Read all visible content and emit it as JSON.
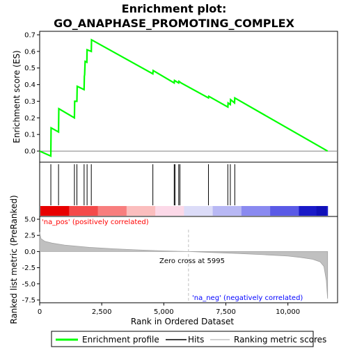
{
  "chart_data": {
    "type": "line",
    "title_line1": "Enrichment plot:",
    "title_line2": "GO_ANAPHASE_PROMOTING_COMPLEX",
    "top_panel": {
      "ylabel": "Enrichment score (ES)",
      "ylim": [
        -0.05,
        0.7
      ],
      "yticks": [
        "0.0",
        "0.1",
        "0.2",
        "0.3",
        "0.4",
        "0.5",
        "0.6",
        "0.7"
      ],
      "ytick_values": [
        0.0,
        0.1,
        0.2,
        0.3,
        0.4,
        0.5,
        0.6,
        0.7
      ],
      "grid": false,
      "series": [
        {
          "name": "Enrichment profile",
          "color": "#00ff00",
          "x": [
            0,
            450,
            460,
            760,
            770,
            1400,
            1410,
            1500,
            1510,
            1790,
            1800,
            1810,
            1830,
            1900,
            1910,
            2080,
            2090,
            4560,
            4570,
            5420,
            5430,
            5600,
            5610,
            5700,
            6800,
            6810,
            7580,
            7590,
            7680,
            7690,
            7850,
            7860,
            11600
          ],
          "y": [
            0.0,
            -0.03,
            0.14,
            0.115,
            0.255,
            0.2,
            0.3,
            0.3,
            0.39,
            0.37,
            0.45,
            0.46,
            0.54,
            0.535,
            0.61,
            0.6,
            0.67,
            0.465,
            0.485,
            0.41,
            0.425,
            0.41,
            0.42,
            0.41,
            0.32,
            0.33,
            0.265,
            0.29,
            0.28,
            0.31,
            0.29,
            0.32,
            0.0
          ]
        }
      ]
    },
    "hits_panel": {
      "hit_positions": [
        450,
        760,
        1400,
        1500,
        1790,
        1910,
        2080,
        4560,
        5420,
        5450,
        5600,
        5650,
        6800,
        7580,
        7680,
        7860
      ]
    },
    "bottom_panel": {
      "ylabel": "Ranked list metric (PreRanked)",
      "xlabel": "Rank in Ordered Dataset",
      "ylim": [
        -7.5,
        5.0
      ],
      "yticks": [
        "5.0",
        "2.5",
        "0.0",
        "-2.5",
        "-5.0",
        "-7.5"
      ],
      "ytick_values": [
        5.0,
        2.5,
        0.0,
        -2.5,
        -5.0,
        -7.5
      ],
      "xlim": [
        0,
        12000
      ],
      "xticks": [
        "0",
        "2,500",
        "5,000",
        "7,500",
        "10,000"
      ],
      "xtick_values": [
        0,
        2500,
        5000,
        7500,
        10000
      ],
      "zero_cross_label": "Zero cross at 5995",
      "zero_cross_rank": 5995,
      "na_pos_label": "'na_pos' (positively correlated)",
      "na_neg_label": "'na_neg' (negatively correlated)",
      "metric_color": "#c0c0c0",
      "metric_x": [
        0,
        50,
        200,
        500,
        1000,
        2000,
        3000,
        4000,
        5000,
        5995,
        7000,
        8000,
        9000,
        10000,
        10500,
        11000,
        11300,
        11450,
        11550,
        11600
      ],
      "metric_y": [
        3.0,
        2.0,
        1.6,
        1.3,
        1.0,
        0.65,
        0.42,
        0.25,
        0.1,
        0.0,
        -0.15,
        -0.3,
        -0.48,
        -0.7,
        -0.9,
        -1.2,
        -1.6,
        -2.3,
        -4.5,
        -7.3
      ]
    },
    "legend": {
      "placement": "bottom",
      "items": [
        {
          "label": "Enrichment profile",
          "color": "#00ff00"
        },
        {
          "label": "Hits",
          "color": "#000000"
        },
        {
          "label": "Ranking metric scores",
          "color": "#c0c0c0"
        }
      ]
    },
    "colors": {
      "pos_label": "#ff0000",
      "neg_label": "#0000ff",
      "zero_line": "#c0c0c0",
      "band_segments": [
        "#e80000",
        "#f44a4a",
        "#f87e7e",
        "#fbbebe",
        "#fcd9e8",
        "#dcdcf8",
        "#b8b8f4",
        "#8a8af0",
        "#5a5ae6",
        "#1a1ac8"
      ]
    }
  }
}
